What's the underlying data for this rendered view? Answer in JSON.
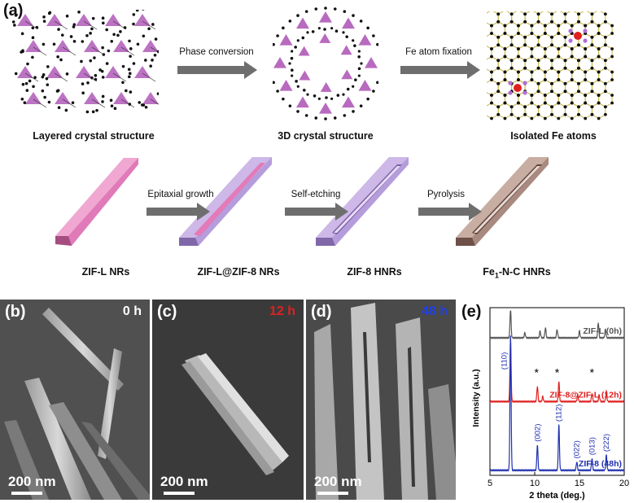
{
  "panel_a": {
    "letter": "(a)",
    "top_row": {
      "captions": [
        "Layered crystal structure",
        "3D crystal structure",
        "Isolated Fe atoms"
      ],
      "arrows": [
        "Phase conversion",
        "Fe atom fixation"
      ]
    },
    "bottom_row": {
      "captions": [
        "ZIF-L NRs",
        "ZIF-L@ZIF-8 NRs",
        "ZIF-8 HNRs"
      ],
      "last_caption": {
        "main": "Fe",
        "sub": "1",
        "rest": "-N-C HNRs"
      },
      "arrows": [
        "Epitaxial growth",
        "Self-etching",
        "Pyrolysis"
      ]
    },
    "colors": {
      "tetra": "#b05ab8",
      "atom": "#111111",
      "fe": "#e02020",
      "n": "#b070d8",
      "ring": "#c8b840",
      "zifl": "#e677b8",
      "zif8": "#b49ad8",
      "carbon": "#b09488",
      "arrow": "#6e6e6e"
    }
  },
  "panels_sem": [
    {
      "letter": "(b)",
      "time": "0 h",
      "time_color": "#ffffff",
      "scale": "200 nm"
    },
    {
      "letter": "(c)",
      "time": "12 h",
      "time_color": "#e02020",
      "scale": "200 nm"
    },
    {
      "letter": "(d)",
      "time": "48 h",
      "time_color": "#2040e0",
      "scale": "200 nm"
    }
  ],
  "panel_e": {
    "letter": "(e)",
    "chart_data": {
      "type": "line",
      "xlabel": "2 theta (deg.)",
      "ylabel": "Intensity (a.u.)",
      "xlim": [
        5,
        20
      ],
      "xticks": [
        5,
        10,
        15,
        20
      ],
      "series": [
        {
          "name": "ZIF-L (0h)",
          "color": "#555555",
          "offset": 0.82,
          "peaks": [
            [
              7.3,
              0.17
            ],
            [
              8.9,
              0.03
            ],
            [
              10.6,
              0.04
            ],
            [
              11.2,
              0.06
            ],
            [
              12.5,
              0.05
            ],
            [
              15.0,
              0.04
            ],
            [
              17.1,
              0.09
            ],
            [
              17.9,
              0.05
            ]
          ]
        },
        {
          "name": "ZIF-8@ZIF-L (12h)",
          "color": "#e02020",
          "offset": 0.44,
          "peaks": [
            [
              7.3,
              0.36
            ],
            [
              10.3,
              0.09
            ],
            [
              10.9,
              0.03
            ],
            [
              12.7,
              0.12
            ],
            [
              14.8,
              0.04
            ],
            [
              16.4,
              0.05
            ],
            [
              17.2,
              0.04
            ],
            [
              18.0,
              0.06
            ]
          ]
        },
        {
          "name": "ZIF-8 (48h)",
          "color": "#2030b0",
          "offset": 0.03,
          "peaks": [
            [
              7.3,
              0.8
            ],
            [
              10.3,
              0.15
            ],
            [
              12.7,
              0.27
            ],
            [
              14.7,
              0.05
            ],
            [
              16.4,
              0.07
            ],
            [
              18.0,
              0.09
            ]
          ]
        }
      ],
      "hkl_labels": [
        {
          "text": "(110)",
          "x": 6.6
        },
        {
          "text": "(002)",
          "x": 10.3
        },
        {
          "text": "(112)",
          "x": 12.7
        },
        {
          "text": "(022)",
          "x": 14.7
        },
        {
          "text": "(013)",
          "x": 16.4
        },
        {
          "text": "(222)",
          "x": 18.0
        }
      ],
      "stars": [
        10.2,
        12.5,
        16.4
      ]
    }
  }
}
